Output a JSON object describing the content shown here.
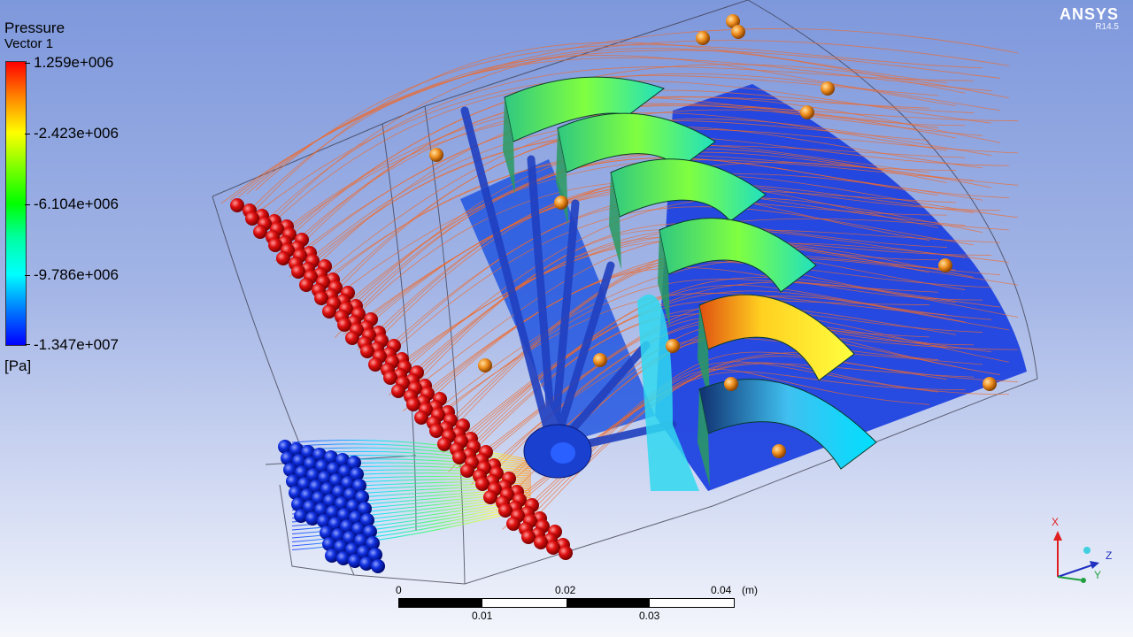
{
  "legend": {
    "variable": "Pressure",
    "object": "Vector 1",
    "ticks": [
      "1.259e+006",
      "-2.423e+006",
      "-6.104e+006",
      "-9.786e+006",
      "-1.347e+007"
    ],
    "unit": "[Pa]"
  },
  "logo": {
    "brand": "ANSYS",
    "release": "R14.5"
  },
  "scale": {
    "top_labels": [
      "0",
      "0.02",
      "0.04"
    ],
    "unit": "(m)",
    "bottom_labels": [
      "0.01",
      "0.03"
    ]
  },
  "triad": {
    "x": "X",
    "y": "Y",
    "z": "Z"
  },
  "colors": {
    "seg_dark": "#000000",
    "seg_light": "#ffffff",
    "inlet_sphere": "#e01010",
    "outlet_sphere": "#1030e0",
    "probe_sphere": "#f09020",
    "streamline": "#f06a2a",
    "axis_x": "#e02020",
    "axis_y": "#20a040",
    "axis_z": "#2030c0"
  }
}
